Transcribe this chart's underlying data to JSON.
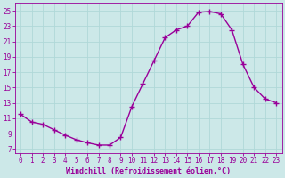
{
  "x": [
    0,
    1,
    2,
    3,
    4,
    5,
    6,
    7,
    8,
    9,
    10,
    11,
    12,
    13,
    14,
    15,
    16,
    17,
    18,
    19,
    20,
    21,
    22,
    23
  ],
  "y": [
    11.5,
    10.5,
    10.2,
    9.5,
    8.8,
    8.2,
    7.8,
    7.5,
    7.5,
    8.5,
    12.5,
    15.5,
    18.5,
    21.5,
    22.5,
    23.0,
    24.8,
    24.9,
    24.6,
    22.5,
    18.0,
    15.0,
    13.5,
    13.0
  ],
  "line_color": "#990099",
  "marker": "+",
  "markersize": 4,
  "linewidth": 1.0,
  "markeredgewidth": 1.0,
  "bg_color": "#cce8e8",
  "grid_color": "#b0d8d8",
  "xlabel": "Windchill (Refroidissement éolien,°C)",
  "xlabel_color": "#990099",
  "tick_color": "#990099",
  "yticks": [
    7,
    9,
    11,
    13,
    15,
    17,
    19,
    21,
    23,
    25
  ],
  "ylim": [
    6.5,
    26.0
  ],
  "xlim": [
    -0.5,
    23.5
  ],
  "xticks": [
    0,
    1,
    2,
    3,
    4,
    5,
    6,
    7,
    8,
    9,
    10,
    11,
    12,
    13,
    14,
    15,
    16,
    17,
    18,
    19,
    20,
    21,
    22,
    23
  ],
  "tick_fontsize": 5.5,
  "xlabel_fontsize": 6.0
}
